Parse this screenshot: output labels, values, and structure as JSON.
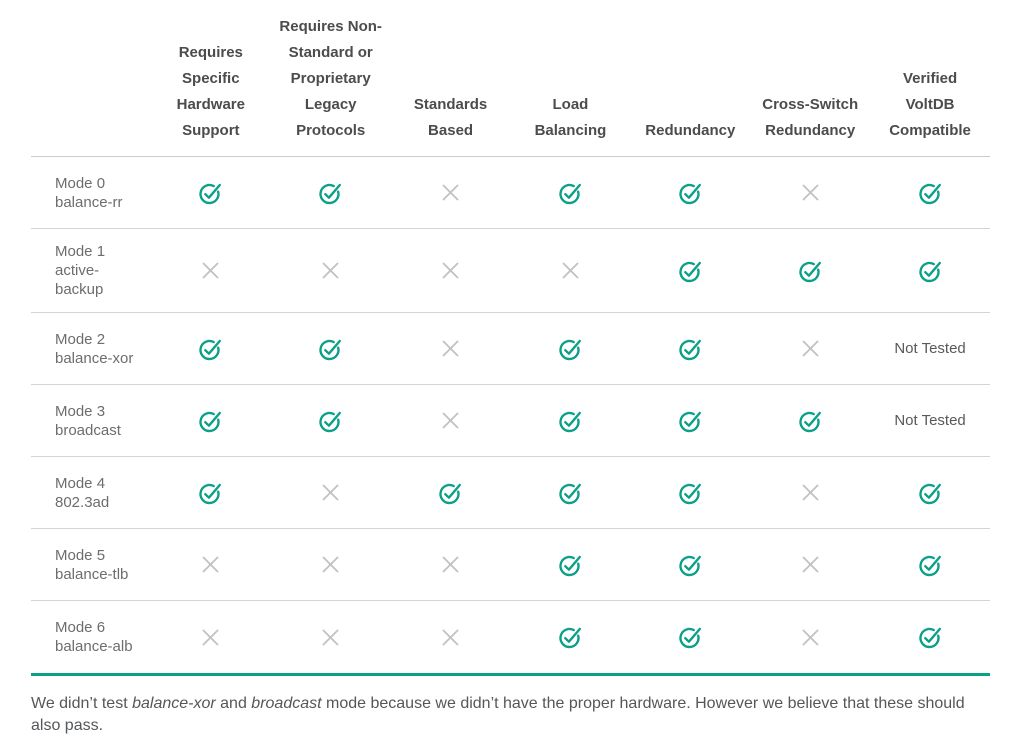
{
  "table": {
    "header": {
      "row_label_column": "",
      "columns": [
        "Requires\nSpecific\nHardware\nSupport",
        "Requires Non-\nStandard or\nProprietary\nLegacy\nProtocols",
        "Standards\nBased",
        "Load\nBalancing",
        "Redundancy",
        "Cross-Switch\nRedundancy",
        "Verified\nVoltDB\nCompatible"
      ]
    },
    "rows": [
      {
        "label": "Mode 0\nbalance-rr",
        "values": [
          "check",
          "check",
          "x",
          "check",
          "check",
          "x",
          "check"
        ]
      },
      {
        "label": "Mode 1\nactive-\nbackup",
        "values": [
          "x",
          "x",
          "x",
          "x",
          "check",
          "check",
          "check"
        ]
      },
      {
        "label": "Mode 2\nbalance-xor",
        "values": [
          "check",
          "check",
          "x",
          "check",
          "check",
          "x",
          "Not Tested"
        ]
      },
      {
        "label": "Mode 3\nbroadcast",
        "values": [
          "check",
          "check",
          "x",
          "check",
          "check",
          "check",
          "Not Tested"
        ]
      },
      {
        "label": "Mode 4\n802.3ad",
        "values": [
          "check",
          "x",
          "check",
          "check",
          "check",
          "x",
          "check"
        ]
      },
      {
        "label": "Mode 5\nbalance-tlb",
        "values": [
          "x",
          "x",
          "x",
          "check",
          "check",
          "x",
          "check"
        ]
      },
      {
        "label": "Mode 6\nbalance-alb",
        "values": [
          "x",
          "x",
          "x",
          "check",
          "check",
          "x",
          "check"
        ]
      }
    ]
  },
  "icons": {
    "check": "check-circle-icon",
    "x": "x-mark-icon"
  },
  "colors": {
    "check_teal": "#0da089",
    "x_gray": "#c1c1c1",
    "bottom_border_teal": "#0da089",
    "header_text": "#4c4c4e",
    "row_label_text": "#6b6d6e"
  },
  "footnote": {
    "segments": [
      {
        "text": "We didn’t test ",
        "italic": false
      },
      {
        "text": "balance-xor",
        "italic": true
      },
      {
        "text": " and ",
        "italic": false
      },
      {
        "text": "broadcast",
        "italic": true
      },
      {
        "text": " mode because we didn’t have the proper hardware. However we believe that these should also pass.",
        "italic": false
      }
    ]
  }
}
